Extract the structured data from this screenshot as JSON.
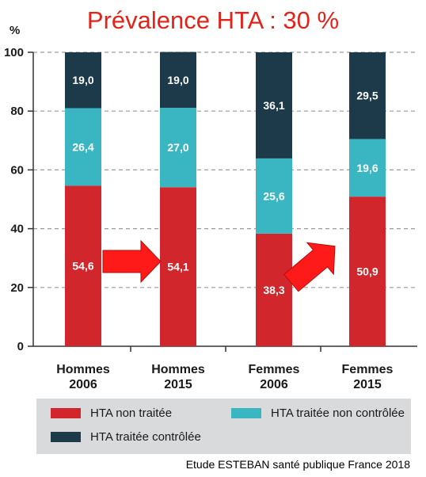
{
  "title": "Prévalence HTA : 30 %",
  "unit_label": "%",
  "source": "Etude ESTEBAN santé publique France 2018",
  "colors": {
    "non_traitee": "#d1262b",
    "non_controlee": "#3ab6c2",
    "controlee": "#1d3a4b",
    "arrow": "#ff1a1a",
    "legend_bg": "#d9dadb"
  },
  "chart_data": {
    "type": "bar",
    "stacked": true,
    "title": "Prévalence HTA : 30 %",
    "ylabel": "%",
    "ylim": [
      0,
      100
    ],
    "yticks": [
      0,
      20,
      40,
      60,
      80,
      100
    ],
    "grid": true,
    "legend_position": "bottom",
    "categories": [
      [
        "Hommes",
        "2006"
      ],
      [
        "Hommes",
        "2015"
      ],
      [
        "Femmes",
        "2006"
      ],
      [
        "Femmes",
        "2015"
      ]
    ],
    "series": [
      {
        "name": "HTA non traitée",
        "values": [
          54.6,
          54.1,
          38.3,
          50.9
        ],
        "labels": [
          "54,6",
          "54,1",
          "38,3",
          "50,9"
        ]
      },
      {
        "name": "HTA traitée non contrôlée",
        "values": [
          26.4,
          27.0,
          25.6,
          19.6
        ],
        "labels": [
          "26,4",
          "27,0",
          "25,6",
          "19,6"
        ]
      },
      {
        "name": "HTA traitée contrôlée",
        "values": [
          19.0,
          19.0,
          36.1,
          29.5
        ],
        "labels": [
          "19,0",
          "19,0",
          "36,1",
          "29,5"
        ]
      }
    ],
    "annotations": [
      {
        "type": "arrow",
        "from": "Hommes 2006",
        "to": "Hommes 2015",
        "direction": "right"
      },
      {
        "type": "arrow",
        "from": "Femmes 2006",
        "to": "Femmes 2015",
        "direction": "up-right"
      }
    ]
  }
}
